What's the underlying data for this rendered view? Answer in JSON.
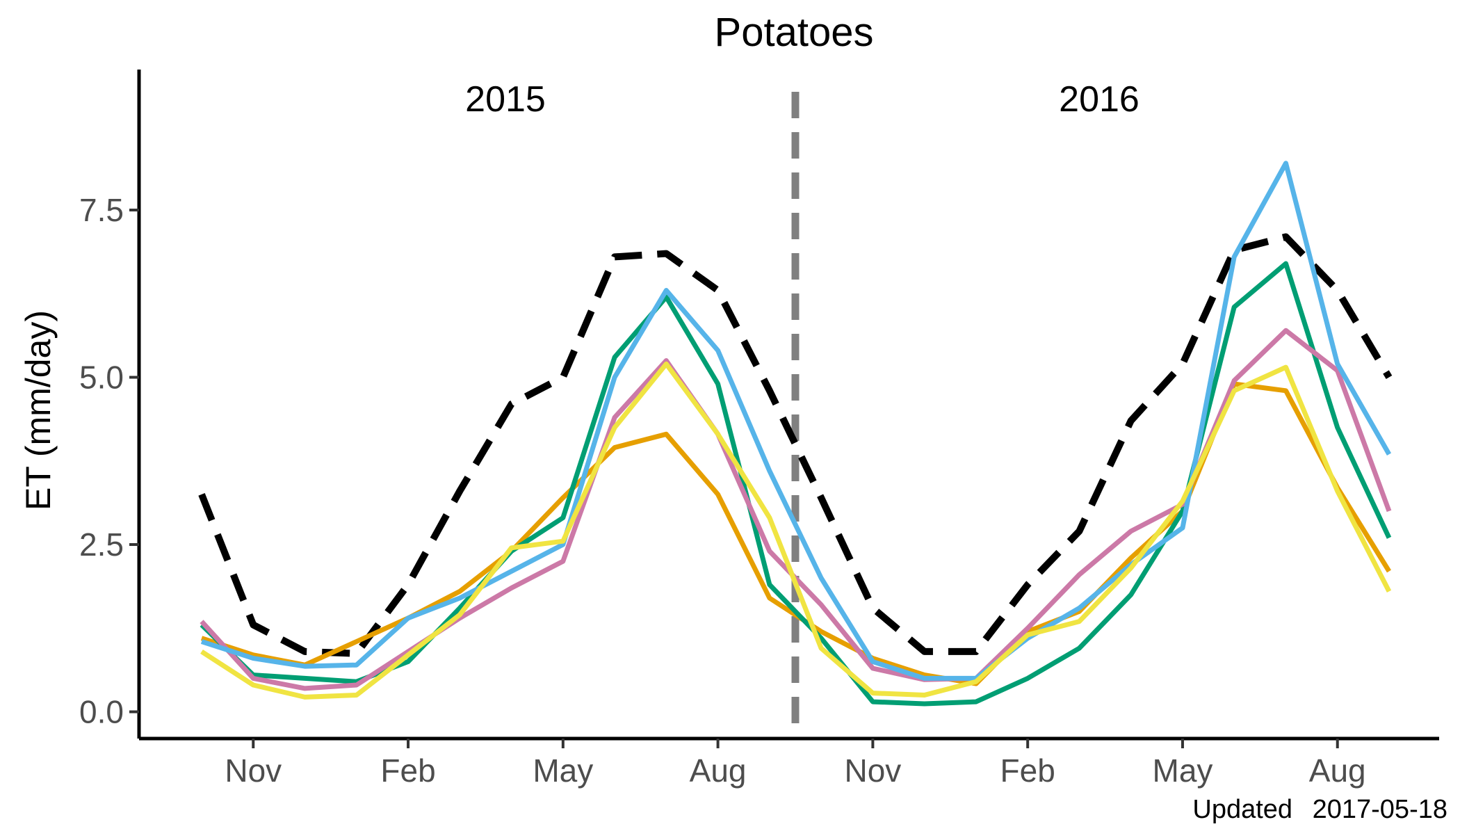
{
  "chart_data": {
    "type": "line",
    "title": "Potatoes",
    "xlabel": "",
    "ylabel": "ET (mm/day)",
    "ylim": [
      -0.4,
      9.6
    ],
    "yticks": [
      0.0,
      2.5,
      5.0,
      7.5
    ],
    "ytick_labels": [
      "0.0",
      "2.5",
      "5.0",
      "7.5"
    ],
    "x": [
      "2014-10",
      "2014-11",
      "2014-12",
      "2015-01",
      "2015-02",
      "2015-03",
      "2015-04",
      "2015-05",
      "2015-06",
      "2015-07",
      "2015-08",
      "2015-09",
      "2015-10",
      "2015-11",
      "2015-12",
      "2016-01",
      "2016-02",
      "2016-03",
      "2016-04",
      "2016-05",
      "2016-06",
      "2016-07",
      "2016-08",
      "2016-09"
    ],
    "xticks": [
      "Nov",
      "Feb",
      "May",
      "Aug",
      "Nov",
      "Feb",
      "May",
      "Aug"
    ],
    "xtick_positions": [
      "2014-11",
      "2015-02",
      "2015-05",
      "2015-08",
      "2015-11",
      "2016-02",
      "2016-05",
      "2016-08"
    ],
    "period_labels": [
      "2015",
      "2016"
    ],
    "divider_between": [
      "2015-09",
      "2015-10"
    ],
    "grid": false,
    "legend": "none",
    "series": [
      {
        "color": "#000000",
        "dashed": true,
        "values": [
          3.25,
          1.3,
          0.9,
          0.87,
          1.9,
          3.3,
          4.6,
          5.0,
          6.8,
          6.85,
          6.3,
          4.8,
          3.2,
          1.55,
          0.9,
          0.9,
          1.9,
          2.7,
          4.35,
          5.2,
          6.9,
          7.1,
          6.3,
          5.0
        ]
      },
      {
        "color": "#E69F00",
        "values": [
          1.1,
          0.85,
          0.7,
          1.05,
          1.4,
          1.8,
          2.4,
          3.2,
          3.95,
          4.15,
          3.25,
          1.7,
          1.2,
          0.8,
          0.55,
          0.42,
          1.2,
          1.5,
          2.3,
          3.0,
          4.9,
          4.8,
          3.35,
          2.1
        ]
      },
      {
        "color": "#009E73",
        "values": [
          1.3,
          0.55,
          0.5,
          0.45,
          0.75,
          1.55,
          2.4,
          2.9,
          5.3,
          6.2,
          4.9,
          1.9,
          1.1,
          0.15,
          0.12,
          0.15,
          0.5,
          0.95,
          1.75,
          3.0,
          6.05,
          6.7,
          4.25,
          2.6
        ]
      },
      {
        "color": "#CC79A7",
        "values": [
          1.35,
          0.5,
          0.35,
          0.4,
          0.9,
          1.4,
          1.85,
          2.25,
          4.4,
          5.25,
          4.15,
          2.4,
          1.6,
          0.65,
          0.48,
          0.5,
          1.25,
          2.05,
          2.7,
          3.1,
          4.95,
          5.7,
          5.1,
          3.0
        ]
      },
      {
        "color": "#56B4E9",
        "values": [
          1.05,
          0.8,
          0.68,
          0.7,
          1.4,
          1.7,
          2.1,
          2.5,
          5.0,
          6.3,
          5.4,
          3.6,
          2.0,
          0.75,
          0.5,
          0.5,
          1.1,
          1.55,
          2.2,
          2.75,
          6.8,
          8.2,
          5.2,
          3.85
        ]
      },
      {
        "color": "#F0E442",
        "values": [
          0.9,
          0.4,
          0.22,
          0.25,
          0.85,
          1.45,
          2.45,
          2.55,
          4.25,
          5.2,
          4.15,
          2.9,
          0.95,
          0.28,
          0.25,
          0.45,
          1.15,
          1.35,
          2.15,
          3.15,
          4.8,
          5.15,
          3.3,
          1.8
        ]
      }
    ]
  },
  "footer": {
    "updated_label": "Updated",
    "updated_date": "2017-05-18"
  }
}
